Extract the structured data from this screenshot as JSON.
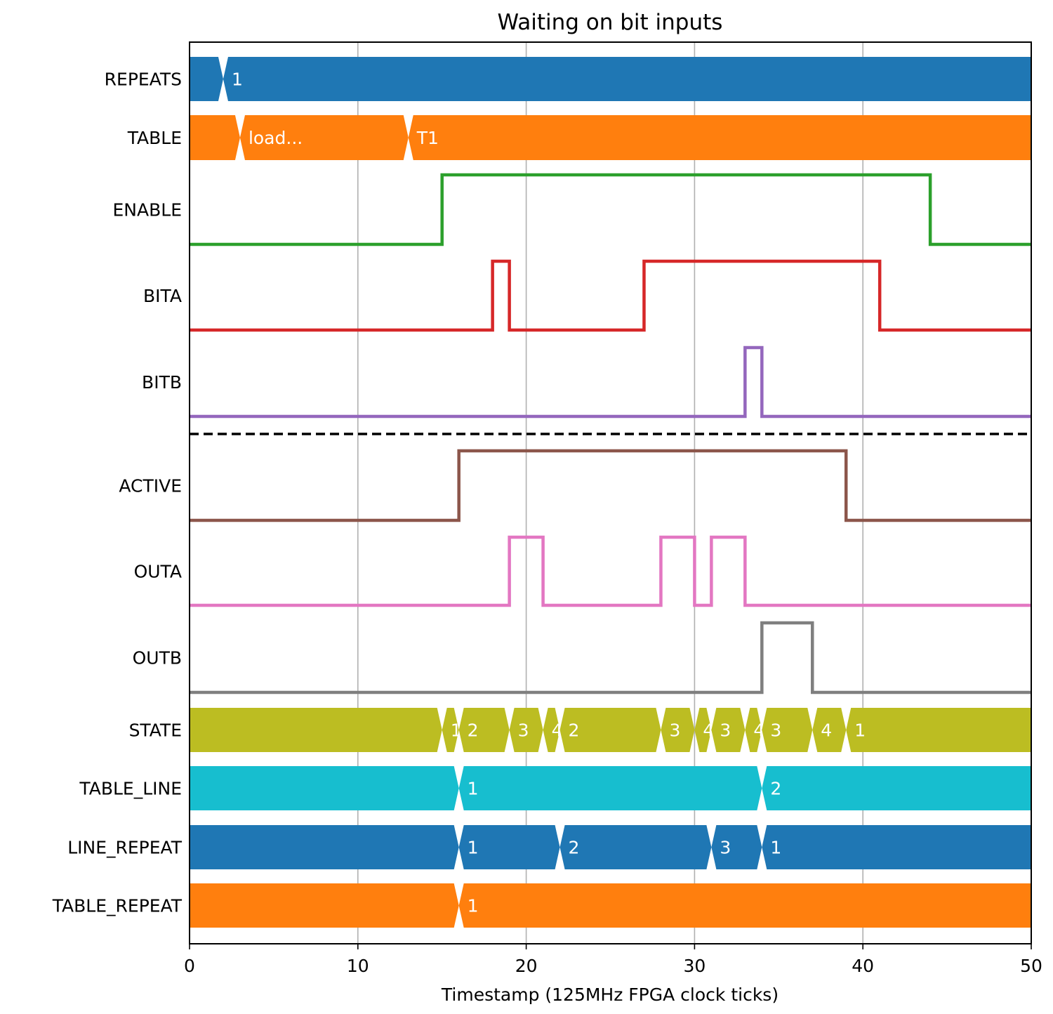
{
  "chart_data": {
    "type": "line",
    "title": "Waiting on bit inputs",
    "xlabel": "Timestamp (125MHz FPGA clock ticks)",
    "ylabel": "",
    "xlim": [
      0,
      50
    ],
    "xticks": [
      "0",
      "10",
      "20",
      "30",
      "40",
      "50"
    ],
    "grid": "x",
    "separator_after": "BITB",
    "series": [
      {
        "name": "REPEATS",
        "kind": "bus",
        "color": "#1f77b4",
        "segments": [
          {
            "t": 0,
            "label": ""
          },
          {
            "t": 2,
            "label": "1"
          }
        ]
      },
      {
        "name": "TABLE",
        "kind": "bus",
        "color": "#ff7f0e",
        "segments": [
          {
            "t": 0,
            "label": ""
          },
          {
            "t": 3,
            "label": "load..."
          },
          {
            "t": 13,
            "label": "T1"
          }
        ]
      },
      {
        "name": "ENABLE",
        "kind": "bit",
        "color": "#2ca02c",
        "points": [
          [
            0,
            0
          ],
          [
            15,
            1
          ],
          [
            44,
            0
          ]
        ]
      },
      {
        "name": "BITA",
        "kind": "bit",
        "color": "#d62728",
        "points": [
          [
            0,
            0
          ],
          [
            18,
            1
          ],
          [
            19,
            0
          ],
          [
            27,
            1
          ],
          [
            41,
            0
          ]
        ]
      },
      {
        "name": "BITB",
        "kind": "bit",
        "color": "#9467bd",
        "points": [
          [
            0,
            0
          ],
          [
            33,
            1
          ],
          [
            34,
            0
          ]
        ]
      },
      {
        "name": "ACTIVE",
        "kind": "bit",
        "color": "#8c564b",
        "points": [
          [
            0,
            0
          ],
          [
            16,
            1
          ],
          [
            39,
            0
          ]
        ]
      },
      {
        "name": "OUTA",
        "kind": "bit",
        "color": "#e377c2",
        "points": [
          [
            0,
            0
          ],
          [
            19,
            1
          ],
          [
            21,
            0
          ],
          [
            28,
            1
          ],
          [
            30,
            0
          ],
          [
            31,
            1
          ],
          [
            33,
            0
          ]
        ]
      },
      {
        "name": "OUTB",
        "kind": "bit",
        "color": "#7f7f7f",
        "points": [
          [
            0,
            0
          ],
          [
            34,
            1
          ],
          [
            37,
            0
          ]
        ]
      },
      {
        "name": "STATE",
        "kind": "bus",
        "color": "#bcbd22",
        "segments": [
          {
            "t": 0,
            "label": ""
          },
          {
            "t": 15,
            "label": "1"
          },
          {
            "t": 16,
            "label": "2"
          },
          {
            "t": 19,
            "label": "3"
          },
          {
            "t": 21,
            "label": "4"
          },
          {
            "t": 22,
            "label": "2"
          },
          {
            "t": 28,
            "label": "3"
          },
          {
            "t": 30,
            "label": "4"
          },
          {
            "t": 31,
            "label": "3"
          },
          {
            "t": 33,
            "label": "4"
          },
          {
            "t": 34,
            "label": "3"
          },
          {
            "t": 37,
            "label": "4"
          },
          {
            "t": 39,
            "label": "1"
          }
        ]
      },
      {
        "name": "TABLE_LINE",
        "kind": "bus",
        "color": "#17becf",
        "segments": [
          {
            "t": 0,
            "label": ""
          },
          {
            "t": 16,
            "label": "1"
          },
          {
            "t": 34,
            "label": "2"
          }
        ]
      },
      {
        "name": "LINE_REPEAT",
        "kind": "bus",
        "color": "#1f77b4",
        "segments": [
          {
            "t": 0,
            "label": ""
          },
          {
            "t": 16,
            "label": "1"
          },
          {
            "t": 22,
            "label": "2"
          },
          {
            "t": 31,
            "label": "3"
          },
          {
            "t": 34,
            "label": "1"
          }
        ]
      },
      {
        "name": "TABLE_REPEAT",
        "kind": "bus",
        "color": "#ff7f0e",
        "segments": [
          {
            "t": 0,
            "label": ""
          },
          {
            "t": 16,
            "label": "1"
          }
        ]
      }
    ]
  }
}
